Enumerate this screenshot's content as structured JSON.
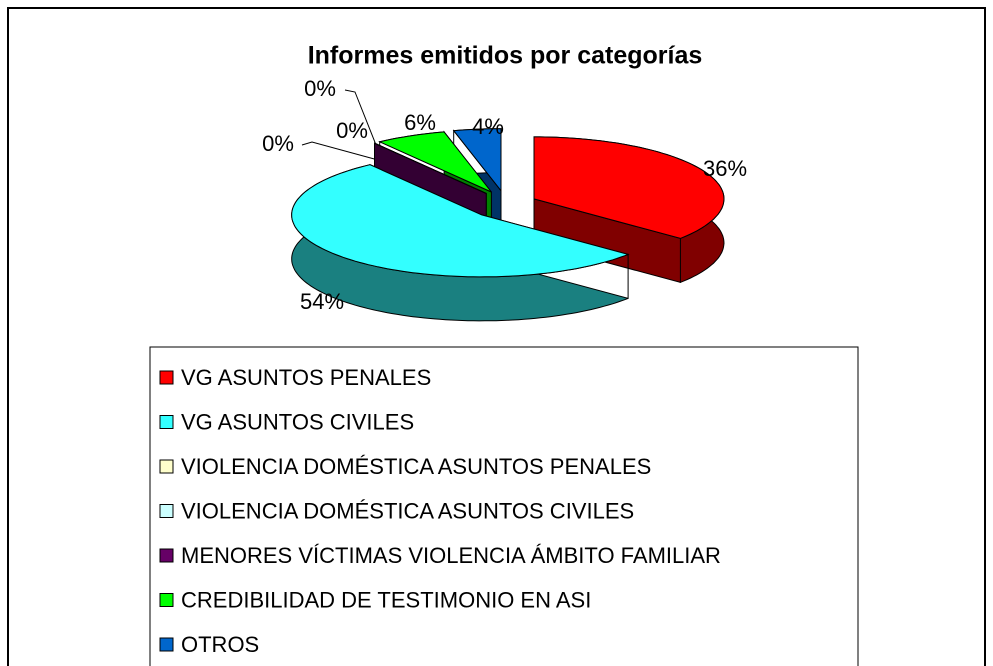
{
  "chart_data": {
    "type": "pie3d",
    "title": "Informes emitidos por categorías",
    "categories": [
      "VG ASUNTOS PENALES",
      "VG ASUNTOS CIVILES",
      "VIOLENCIA DOMÉSTICA ASUNTOS PENALES",
      "VIOLENCIA DOMÉSTICA ASUNTOS CIVILES",
      "MENORES VÍCTIMAS VIOLENCIA ÁMBITO FAMILIAR",
      "CREDIBILIDAD DE TESTIMONIO EN ASI",
      "OTROS"
    ],
    "values": [
      36,
      54,
      0,
      0,
      0,
      6,
      4
    ],
    "value_labels": [
      "36%",
      "54%",
      "0%",
      "0%",
      "0%",
      "6%",
      "4%"
    ],
    "colors": [
      "#ff0000",
      "#33ffff",
      "#ffffcc",
      "#ccffff",
      "#660066",
      "#00ff00",
      "#0066cc"
    ],
    "legend": "bottom"
  }
}
